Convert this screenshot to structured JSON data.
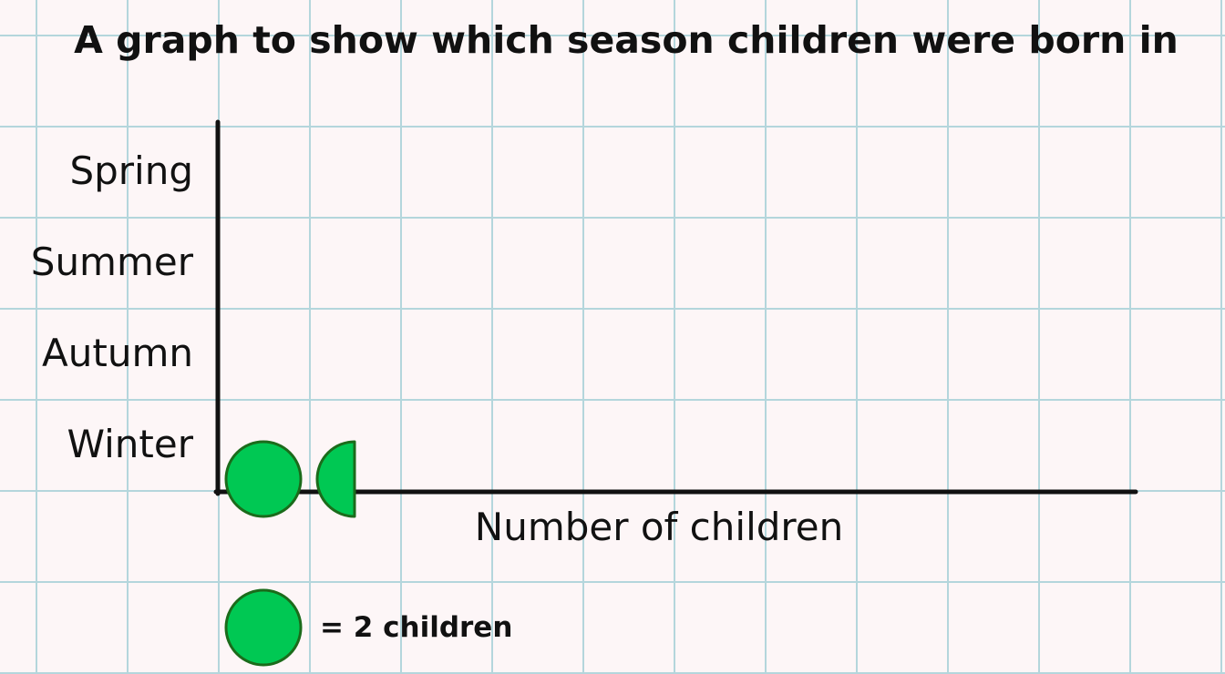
{
  "chart_data": {
    "type": "pictogram",
    "title": "A graph to show which season children were born in",
    "xlabel": "Number of children",
    "ylabel": "",
    "categories": [
      "Spring",
      "Summer",
      "Autumn",
      "Winter"
    ],
    "values": [
      0,
      0,
      0,
      3
    ],
    "symbol": "circle",
    "symbol_value": 2,
    "symbol_color": "#00c853",
    "symbol_stroke": "#1b6b1b",
    "key_label": "= 2 children",
    "grid": true,
    "grid_color": "#b4d6dc",
    "background": "#fdf6f7"
  }
}
